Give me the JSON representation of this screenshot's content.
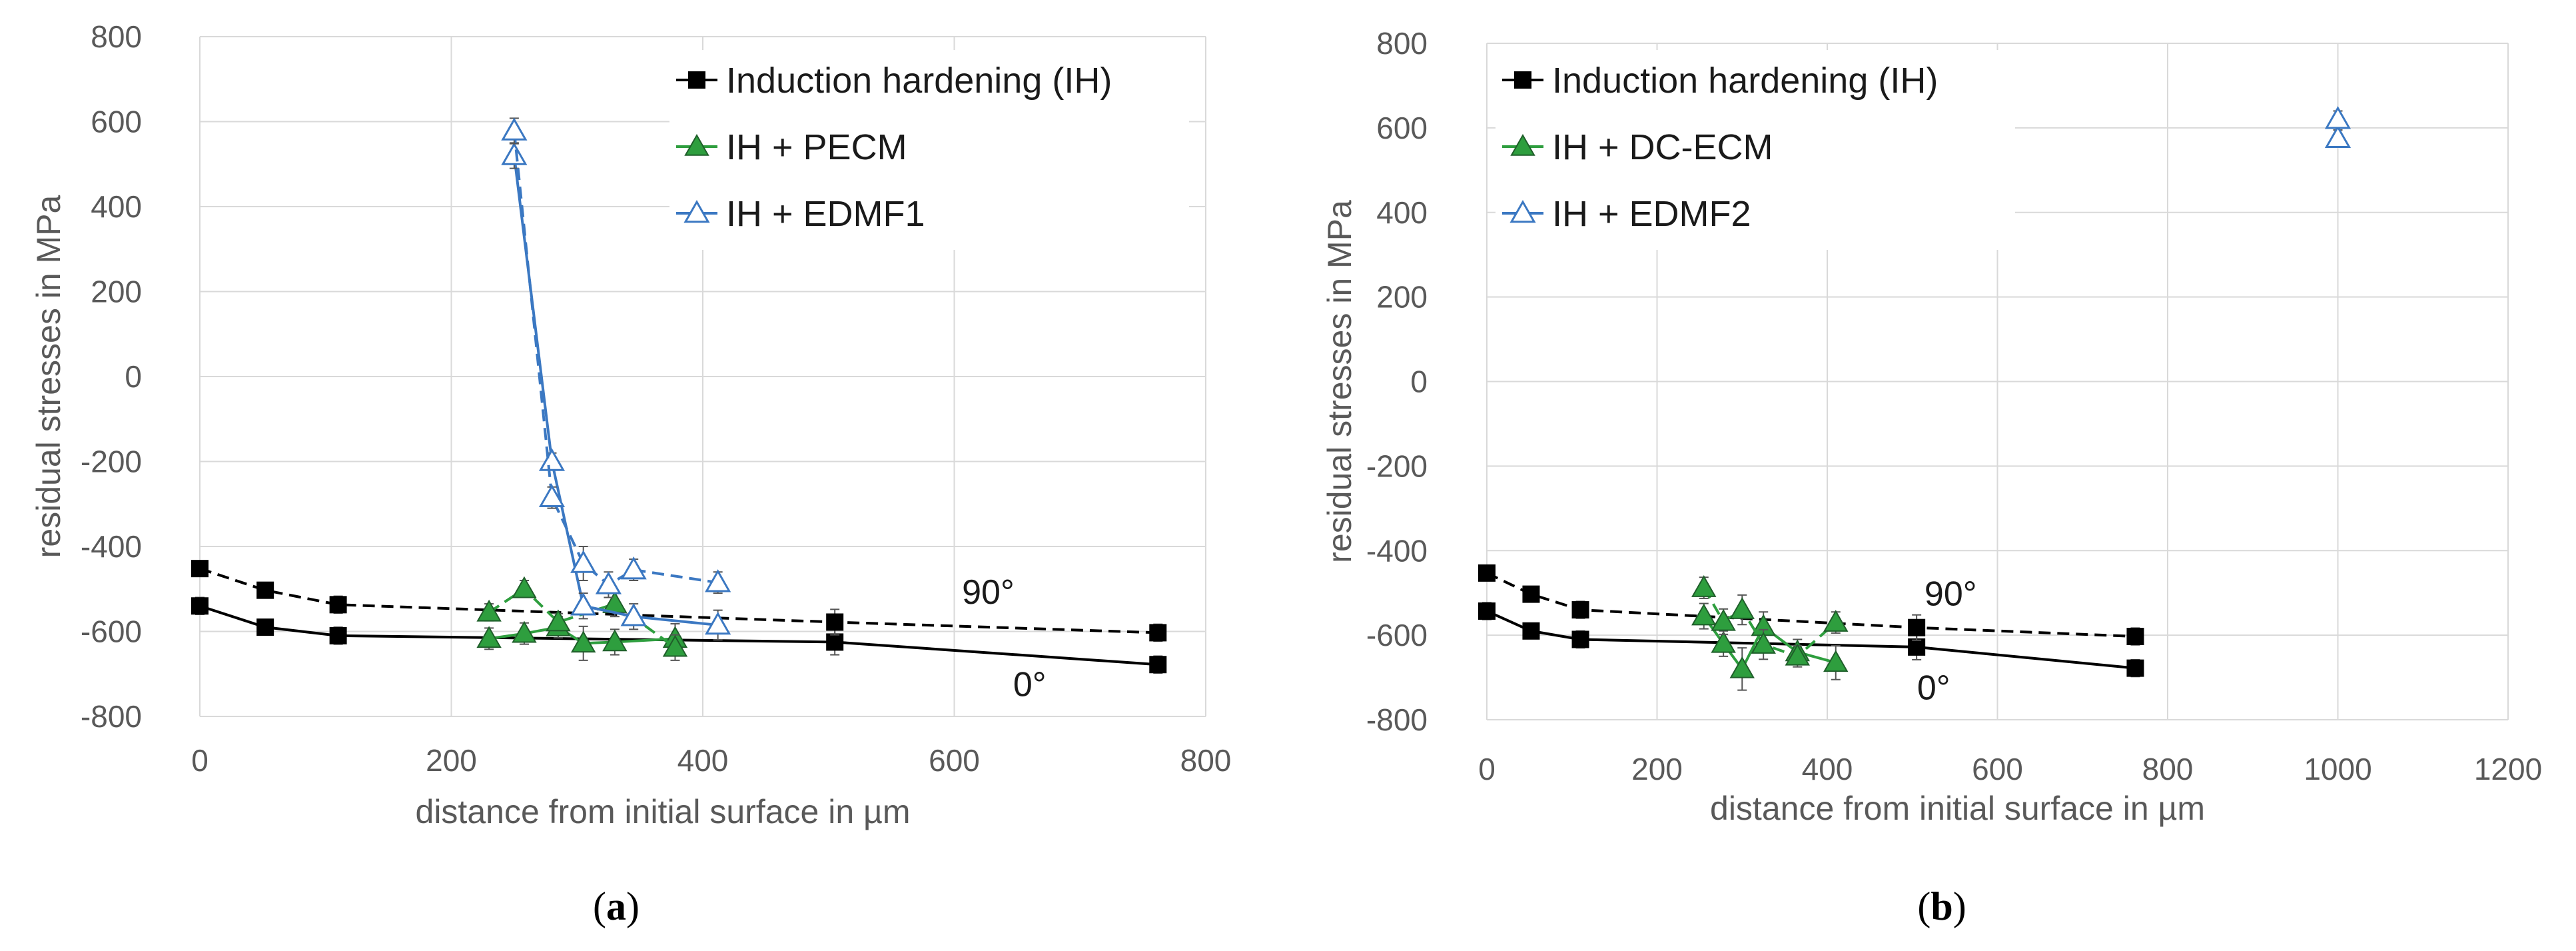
{
  "chart_data": [
    {
      "type": "line",
      "panel": "a",
      "caption": {
        "open": "(",
        "letter": "a",
        "close": ")"
      },
      "xlabel": "distance from initial surface in µm",
      "ylabel": "residual stresses in MPa",
      "xlim": [
        0,
        800
      ],
      "ylim": [
        -800,
        800
      ],
      "xticks": [
        0,
        200,
        400,
        600,
        800
      ],
      "yticks": [
        800,
        600,
        400,
        200,
        0,
        -200,
        -400,
        -600,
        -800
      ],
      "grid": true,
      "legend": "top-right",
      "series": [
        {
          "name": "Induction hardening (IH)",
          "key": "ih",
          "color": "#000000",
          "marker": "square",
          "orientation": "0°",
          "dashed": false,
          "x": [
            0,
            52,
            110,
            505,
            762
          ],
          "y": [
            -540,
            -590,
            -610,
            -625,
            -678
          ],
          "err": [
            20,
            15,
            20,
            30,
            20
          ]
        },
        {
          "name": "Induction hardening (IH)",
          "key": "ih",
          "color": "#000000",
          "marker": "square",
          "orientation": "90°",
          "dashed": true,
          "x": [
            0,
            52,
            110,
            505,
            762
          ],
          "y": [
            -452,
            -503,
            -537,
            -578,
            -603
          ],
          "err": [
            15,
            15,
            20,
            30,
            20
          ]
        },
        {
          "name": "IH + PECM",
          "key": "pecm",
          "color": "#2e9e3e",
          "marker": "triangle-filled",
          "orientation": "0°",
          "dashed": false,
          "x": [
            230,
            258,
            285,
            305,
            330,
            378
          ],
          "y": [
            -617,
            -605,
            -590,
            -628,
            -625,
            -617
          ],
          "err": [
            25,
            25,
            25,
            40,
            30,
            35
          ]
        },
        {
          "name": "IH + PECM",
          "key": "pecm",
          "color": "#2e9e3e",
          "marker": "triangle-filled",
          "orientation": "90°",
          "dashed": true,
          "x": [
            230,
            258,
            285,
            330,
            378
          ],
          "y": [
            -555,
            -500,
            -578,
            -535,
            -638
          ],
          "err": [
            20,
            20,
            20,
            30,
            30
          ]
        },
        {
          "name": "IH + EDMF1",
          "key": "edmf",
          "color": "#3b78c2",
          "marker": "triangle-open",
          "orientation": "0°",
          "dashed": false,
          "x": [
            250,
            280,
            305,
            345,
            412
          ],
          "y": [
            520,
            -200,
            -540,
            -565,
            -585
          ],
          "err": [
            30,
            20,
            30,
            30,
            35
          ]
        },
        {
          "name": "IH + EDMF1",
          "key": "edmf",
          "color": "#3b78c2",
          "marker": "triangle-open",
          "orientation": "90°",
          "dashed": true,
          "x": [
            250,
            280,
            305,
            325,
            345,
            412
          ],
          "y": [
            578,
            -285,
            -440,
            -490,
            -455,
            -485
          ],
          "err": [
            30,
            25,
            40,
            30,
            25,
            25
          ]
        }
      ],
      "annotations": [
        {
          "text": "90°",
          "x": 627,
          "y": -535
        },
        {
          "text": "0°",
          "x": 660,
          "y": -752
        }
      ]
    },
    {
      "type": "line",
      "panel": "b",
      "caption": {
        "open": "(",
        "letter": "b",
        "close": ")"
      },
      "xlabel": "distance from initial surface in µm",
      "ylabel": "residual stresses in MPa",
      "xlim": [
        0,
        1200
      ],
      "ylim": [
        -800,
        800
      ],
      "xticks": [
        0,
        200,
        400,
        600,
        800,
        1000,
        1200
      ],
      "yticks": [
        800,
        600,
        400,
        200,
        0,
        -200,
        -400,
        -600,
        -800
      ],
      "grid": true,
      "legend": "top-left",
      "series": [
        {
          "name": "Induction hardening (IH)",
          "key": "ih",
          "color": "#000000",
          "marker": "square",
          "orientation": "0°",
          "dashed": false,
          "x": [
            0,
            52,
            110,
            505,
            762
          ],
          "y": [
            -543,
            -590,
            -610,
            -628,
            -678
          ],
          "err": [
            20,
            15,
            20,
            30,
            20
          ]
        },
        {
          "name": "Induction hardening (IH)",
          "key": "ih",
          "color": "#000000",
          "marker": "square",
          "orientation": "90°",
          "dashed": true,
          "x": [
            0,
            52,
            110,
            505,
            762
          ],
          "y": [
            -453,
            -503,
            -540,
            -582,
            -603
          ],
          "err": [
            15,
            15,
            20,
            30,
            20
          ]
        },
        {
          "name": "IH + DC-ECM",
          "key": "dcecm",
          "color": "#2e9e3e",
          "marker": "triangle-filled",
          "orientation": "0°",
          "dashed": false,
          "x": [
            255,
            278,
            300,
            325,
            365,
            410
          ],
          "y": [
            -555,
            -620,
            -680,
            -580,
            -640,
            -665
          ],
          "err": [
            30,
            30,
            50,
            35,
            30,
            40
          ]
        },
        {
          "name": "IH + DC-ECM",
          "key": "dcecm",
          "color": "#2e9e3e",
          "marker": "triangle-filled",
          "orientation": "90°",
          "dashed": true,
          "x": [
            255,
            278,
            300,
            325,
            365,
            410
          ],
          "y": [
            -488,
            -568,
            -540,
            -622,
            -650,
            -570
          ],
          "err": [
            25,
            30,
            35,
            35,
            25,
            25
          ]
        },
        {
          "name": "IH + EDMF2",
          "key": "edmf",
          "color": "#3b78c2",
          "marker": "triangle-open",
          "orientation": "0°",
          "dashed": false,
          "x": [
            1000
          ],
          "y": [
            575
          ],
          "err": [
            20
          ]
        },
        {
          "name": "IH + EDMF2",
          "key": "edmf",
          "color": "#3b78c2",
          "marker": "triangle-open",
          "orientation": "90°",
          "dashed": true,
          "x": [
            1000
          ],
          "y": [
            620
          ],
          "err": [
            20
          ]
        }
      ],
      "annotations": [
        {
          "text": "90°",
          "x": 545,
          "y": -530
        },
        {
          "text": "0°",
          "x": 525,
          "y": -752
        }
      ]
    }
  ]
}
